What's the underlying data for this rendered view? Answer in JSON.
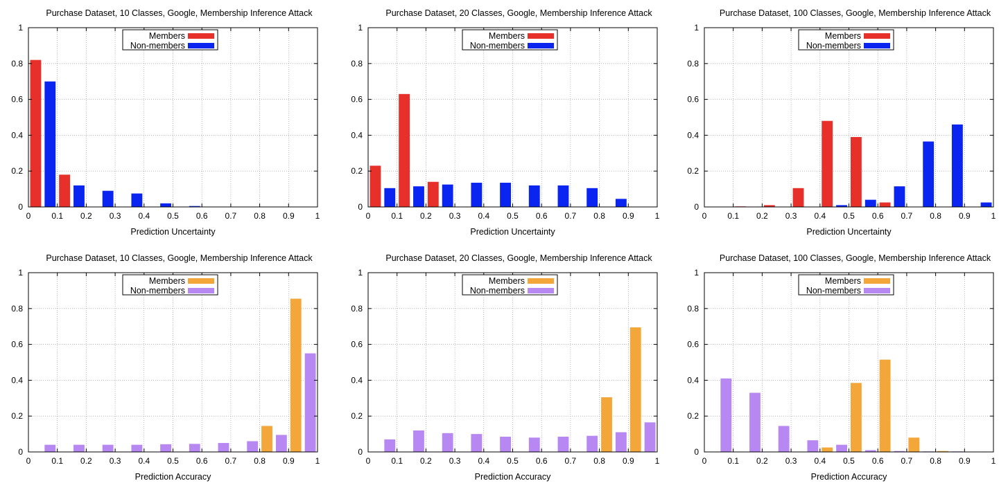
{
  "colors": {
    "uncertainty_members": "#e8302a",
    "uncertainty_nonmembers": "#0a25f0",
    "accuracy_members": "#f3a73a",
    "accuracy_nonmembers": "#b888f2"
  },
  "chart_data": [
    {
      "type": "bar",
      "title": "Purchase Dataset, 10 Classes, Google, Membership Inference Attack",
      "xlabel": "Prediction Uncertainty",
      "ylabel": "",
      "xlim": [
        0,
        1
      ],
      "ylim": [
        0,
        1
      ],
      "xticks": [
        "0",
        "0.1",
        "0.2",
        "0.3",
        "0.4",
        "0.5",
        "0.6",
        "0.7",
        "0.8",
        "0.9",
        "1"
      ],
      "yticks": [
        "0",
        "0.2",
        "0.4",
        "0.6",
        "0.8",
        "1"
      ],
      "grid": true,
      "legend_position": "top-center",
      "bin_width": 0.1,
      "series": [
        {
          "name": "Members",
          "color_key": "uncertainty_members",
          "values": [
            0.82,
            0.18,
            0,
            0,
            0,
            0,
            0,
            0,
            0,
            0
          ]
        },
        {
          "name": "Non-members",
          "color_key": "uncertainty_nonmembers",
          "values": [
            0.7,
            0.12,
            0.09,
            0.075,
            0.02,
            0.005,
            0,
            0,
            0,
            0
          ]
        }
      ]
    },
    {
      "type": "bar",
      "title": "Purchase Dataset, 20 Classes, Google, Membership Inference Attack",
      "xlabel": "Prediction Uncertainty",
      "ylabel": "",
      "xlim": [
        0,
        1
      ],
      "ylim": [
        0,
        1
      ],
      "xticks": [
        "0",
        "0.1",
        "0.2",
        "0.3",
        "0.4",
        "0.5",
        "0.6",
        "0.7",
        "0.8",
        "0.9",
        "1"
      ],
      "yticks": [
        "0",
        "0.2",
        "0.4",
        "0.6",
        "0.8",
        "1"
      ],
      "grid": true,
      "legend_position": "top-center",
      "bin_width": 0.1,
      "series": [
        {
          "name": "Members",
          "color_key": "uncertainty_members",
          "values": [
            0.23,
            0.63,
            0.14,
            0,
            0,
            0,
            0,
            0,
            0,
            0
          ]
        },
        {
          "name": "Non-members",
          "color_key": "uncertainty_nonmembers",
          "values": [
            0.105,
            0.115,
            0.125,
            0.135,
            0.135,
            0.12,
            0.12,
            0.105,
            0.045,
            0
          ]
        }
      ]
    },
    {
      "type": "bar",
      "title": "Purchase Dataset, 100 Classes, Google, Membership Inference Attack",
      "xlabel": "Prediction Uncertainty",
      "ylabel": "",
      "xlim": [
        0,
        1
      ],
      "ylim": [
        0,
        1
      ],
      "xticks": [
        "0",
        "0.1",
        "0.2",
        "0.3",
        "0.4",
        "0.5",
        "0.6",
        "0.7",
        "0.8",
        "0.9",
        "1"
      ],
      "yticks": [
        "0",
        "0.2",
        "0.4",
        "0.6",
        "0.8",
        "1"
      ],
      "grid": true,
      "legend_position": "top-center",
      "bin_width": 0.1,
      "series": [
        {
          "name": "Members",
          "color_key": "uncertainty_members",
          "values": [
            0,
            0.003,
            0.01,
            0.105,
            0.48,
            0.39,
            0.025,
            0,
            0,
            0
          ]
        },
        {
          "name": "Non-members",
          "color_key": "uncertainty_nonmembers",
          "values": [
            0,
            0,
            0,
            0,
            0.01,
            0.04,
            0.115,
            0.365,
            0.46,
            0.025
          ]
        }
      ]
    },
    {
      "type": "bar",
      "title": "Purchase Dataset, 10 Classes, Google, Membership Inference Attack",
      "xlabel": "Prediction Accuracy",
      "ylabel": "",
      "xlim": [
        0,
        1
      ],
      "ylim": [
        0,
        1
      ],
      "xticks": [
        "0",
        "0.1",
        "0.2",
        "0.3",
        "0.4",
        "0.5",
        "0.6",
        "0.7",
        "0.8",
        "0.9",
        "1"
      ],
      "yticks": [
        "0",
        "0.2",
        "0.4",
        "0.6",
        "0.8",
        "1"
      ],
      "grid": true,
      "legend_position": "top-center",
      "bin_width": 0.1,
      "series": [
        {
          "name": "Members",
          "color_key": "accuracy_members",
          "values": [
            0,
            0,
            0,
            0,
            0,
            0,
            0,
            0,
            0.145,
            0.855
          ]
        },
        {
          "name": "Non-members",
          "color_key": "accuracy_nonmembers",
          "values": [
            0.04,
            0.04,
            0.04,
            0.04,
            0.043,
            0.045,
            0.05,
            0.06,
            0.095,
            0.55
          ]
        }
      ]
    },
    {
      "type": "bar",
      "title": "Purchase Dataset, 20 Classes, Google, Membership Inference Attack",
      "xlabel": "Prediction Accuracy",
      "ylabel": "",
      "xlim": [
        0,
        1
      ],
      "ylim": [
        0,
        1
      ],
      "xticks": [
        "0",
        "0.1",
        "0.2",
        "0.3",
        "0.4",
        "0.5",
        "0.6",
        "0.7",
        "0.8",
        "0.9",
        "1"
      ],
      "yticks": [
        "0",
        "0.2",
        "0.4",
        "0.6",
        "0.8",
        "1"
      ],
      "grid": true,
      "legend_position": "top-center",
      "bin_width": 0.1,
      "series": [
        {
          "name": "Members",
          "color_key": "accuracy_members",
          "values": [
            0,
            0,
            0,
            0,
            0,
            0,
            0,
            0,
            0.305,
            0.695
          ]
        },
        {
          "name": "Non-members",
          "color_key": "accuracy_nonmembers",
          "values": [
            0.07,
            0.12,
            0.105,
            0.1,
            0.085,
            0.08,
            0.085,
            0.09,
            0.11,
            0.165
          ]
        }
      ]
    },
    {
      "type": "bar",
      "title": "Purchase Dataset, 100 Classes, Google, Membership Inference Attack",
      "xlabel": "Prediction Accuracy",
      "ylabel": "",
      "xlim": [
        0,
        1
      ],
      "ylim": [
        0,
        1
      ],
      "xticks": [
        "0",
        "0.1",
        "0.2",
        "0.3",
        "0.4",
        "0.5",
        "0.6",
        "0.7",
        "0.8",
        "0.9",
        "1"
      ],
      "yticks": [
        "0",
        "0.2",
        "0.4",
        "0.6",
        "0.8",
        "1"
      ],
      "grid": true,
      "legend_position": "top-center",
      "bin_width": 0.1,
      "series": [
        {
          "name": "Members",
          "color_key": "accuracy_members",
          "values": [
            0,
            0,
            0,
            0,
            0.025,
            0.385,
            0.515,
            0.08,
            0.005,
            0
          ]
        },
        {
          "name": "Non-members",
          "color_key": "accuracy_nonmembers",
          "values": [
            0.41,
            0.33,
            0.145,
            0.065,
            0.04,
            0.01,
            0.005,
            0.003,
            0.003,
            0.002
          ]
        }
      ]
    }
  ]
}
